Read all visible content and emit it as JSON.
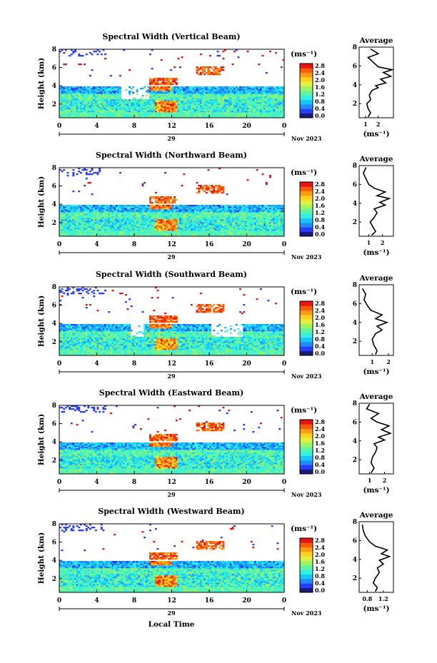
{
  "x_axis_label": "Local Time",
  "date_label": "Nov 2023",
  "day_label": "29",
  "unit_label": "(ms⁻¹)",
  "avg_xlabel": "(ms⁻¹)",
  "height_label": "Height (km)",
  "colorbar": {
    "ticks": [
      "2.8",
      "2.4",
      "2.0",
      "1.6",
      "1.2",
      "0.8",
      "0.4",
      "0.0"
    ],
    "colors": [
      "#1a1a7a",
      "#2a3cff",
      "#1e8cff",
      "#14c8ff",
      "#35f0e0",
      "#5ff5a0",
      "#9ef564",
      "#e0f03c",
      "#ffd21e",
      "#ff9a14",
      "#ff5a0a",
      "#e81414"
    ]
  },
  "chart_data": [
    {
      "type": "heatmap",
      "title": "Spectral Width (Vertical Beam)",
      "xlim": [
        0,
        24
      ],
      "x_ticks": [
        "0",
        "4",
        "8",
        "12",
        "16",
        "20",
        "0"
      ],
      "ylim": [
        0.5,
        8
      ],
      "y_ticks": [
        "8",
        "6",
        "4",
        "2"
      ],
      "clim": [
        0,
        2.8
      ],
      "average_profile": {
        "title": "Average",
        "x_ticks": [
          "1",
          "2"
        ],
        "y_ticks": [
          "8",
          "6",
          "4",
          "2"
        ],
        "xlim": [
          0.5,
          3.2
        ],
        "points": [
          [
            1.2,
            0.6
          ],
          [
            1.4,
            1.0
          ],
          [
            1.2,
            1.5
          ],
          [
            1.1,
            2.0
          ],
          [
            1.4,
            2.4
          ],
          [
            1.3,
            2.9
          ],
          [
            1.5,
            3.4
          ],
          [
            2.0,
            3.7
          ],
          [
            1.8,
            3.9
          ],
          [
            2.6,
            4.2
          ],
          [
            2.2,
            4.6
          ],
          [
            3.0,
            4.9
          ],
          [
            2.4,
            5.3
          ],
          [
            3.1,
            5.6
          ],
          [
            2.0,
            5.9
          ],
          [
            1.6,
            6.4
          ],
          [
            1.2,
            6.9
          ],
          [
            2.0,
            7.3
          ],
          [
            1.4,
            7.8
          ]
        ]
      }
    },
    {
      "type": "heatmap",
      "title": "Spectral Width (Northward Beam)",
      "xlim": [
        0,
        24
      ],
      "x_ticks": [
        "0",
        "4",
        "8",
        "12",
        "16",
        "20",
        "0"
      ],
      "ylim": [
        0.5,
        8
      ],
      "y_ticks": [
        "8",
        "6",
        "4",
        "2"
      ],
      "clim": [
        0,
        2.8
      ],
      "average_profile": {
        "title": "Average",
        "x_ticks": [
          "1",
          "2"
        ],
        "y_ticks": [
          "8",
          "6",
          "4",
          "2"
        ],
        "xlim": [
          0.3,
          2.8
        ],
        "points": [
          [
            1.2,
            0.6
          ],
          [
            1.5,
            1.0
          ],
          [
            1.3,
            1.5
          ],
          [
            1.1,
            2.0
          ],
          [
            1.4,
            2.5
          ],
          [
            1.6,
            3.0
          ],
          [
            1.4,
            3.4
          ],
          [
            2.2,
            3.8
          ],
          [
            1.8,
            4.1
          ],
          [
            2.5,
            4.5
          ],
          [
            1.6,
            4.8
          ],
          [
            2.2,
            5.2
          ],
          [
            1.4,
            5.6
          ],
          [
            1.0,
            6.0
          ],
          [
            0.8,
            6.6
          ],
          [
            0.6,
            7.2
          ],
          [
            0.8,
            7.8
          ]
        ]
      }
    },
    {
      "type": "heatmap",
      "title": "Spectral Width (Southward Beam)",
      "xlim": [
        0,
        24
      ],
      "x_ticks": [
        "0",
        "4",
        "8",
        "12",
        "16",
        "20",
        "0"
      ],
      "ylim": [
        0.5,
        8
      ],
      "y_ticks": [
        "8",
        "6",
        "4",
        "2"
      ],
      "clim": [
        0,
        2.8
      ],
      "average_profile": {
        "title": "Average",
        "x_ticks": [
          "1",
          "2"
        ],
        "y_ticks": [
          "8",
          "6",
          "4",
          "2"
        ],
        "xlim": [
          0.2,
          2.3
        ],
        "points": [
          [
            1.2,
            0.6
          ],
          [
            1.3,
            1.0
          ],
          [
            1.1,
            1.6
          ],
          [
            1.0,
            2.2
          ],
          [
            1.2,
            2.8
          ],
          [
            1.6,
            3.2
          ],
          [
            1.3,
            3.6
          ],
          [
            1.9,
            4.0
          ],
          [
            1.2,
            4.4
          ],
          [
            1.6,
            4.8
          ],
          [
            0.9,
            5.3
          ],
          [
            0.7,
            5.8
          ],
          [
            0.5,
            6.4
          ],
          [
            0.6,
            7.0
          ],
          [
            0.4,
            7.6
          ]
        ]
      }
    },
    {
      "type": "heatmap",
      "title": "Spectral Width (Eastward Beam)",
      "xlim": [
        0,
        24
      ],
      "x_ticks": [
        "0",
        "4",
        "8",
        "12",
        "16",
        "20",
        "0"
      ],
      "ylim": [
        0.5,
        8
      ],
      "y_ticks": [
        "8",
        "6",
        "4",
        "2"
      ],
      "clim": [
        0,
        2.8
      ],
      "average_profile": {
        "title": "Average",
        "x_ticks": [
          "1",
          "2"
        ],
        "y_ticks": [
          "8",
          "6",
          "4",
          "2"
        ],
        "xlim": [
          0.3,
          2.6
        ],
        "points": [
          [
            1.1,
            0.6
          ],
          [
            1.3,
            1.1
          ],
          [
            1.1,
            1.7
          ],
          [
            1.2,
            2.3
          ],
          [
            1.4,
            2.8
          ],
          [
            1.5,
            3.3
          ],
          [
            1.3,
            3.7
          ],
          [
            2.0,
            4.1
          ],
          [
            1.6,
            4.4
          ],
          [
            2.4,
            4.8
          ],
          [
            1.8,
            5.2
          ],
          [
            2.3,
            5.6
          ],
          [
            1.5,
            6.0
          ],
          [
            1.1,
            6.4
          ],
          [
            1.6,
            6.9
          ],
          [
            0.8,
            7.4
          ],
          [
            1.0,
            7.9
          ]
        ]
      }
    },
    {
      "type": "heatmap",
      "title": "Spectral Width (Westward Beam)",
      "xlim": [
        0,
        24
      ],
      "x_ticks": [
        "0",
        "4",
        "8",
        "12",
        "16",
        "20",
        "0"
      ],
      "ylim": [
        0.5,
        8
      ],
      "y_ticks": [
        "8",
        "6",
        "4",
        "2"
      ],
      "clim": [
        0,
        2.8
      ],
      "average_profile": {
        "title": "Average",
        "x_ticks": [
          "0.8",
          "1.2"
        ],
        "y_ticks": [
          "8",
          "6",
          "4",
          "2"
        ],
        "xlim": [
          0.6,
          1.45
        ],
        "points": [
          [
            1.0,
            0.6
          ],
          [
            1.05,
            1.0
          ],
          [
            0.95,
            1.5
          ],
          [
            1.0,
            2.0
          ],
          [
            1.1,
            2.6
          ],
          [
            1.05,
            3.1
          ],
          [
            1.2,
            3.5
          ],
          [
            1.1,
            3.9
          ],
          [
            1.35,
            4.3
          ],
          [
            1.15,
            4.6
          ],
          [
            1.3,
            5.0
          ],
          [
            1.0,
            5.4
          ],
          [
            0.85,
            5.9
          ],
          [
            0.75,
            6.5
          ],
          [
            0.7,
            7.1
          ],
          [
            0.68,
            7.7
          ]
        ]
      }
    }
  ]
}
